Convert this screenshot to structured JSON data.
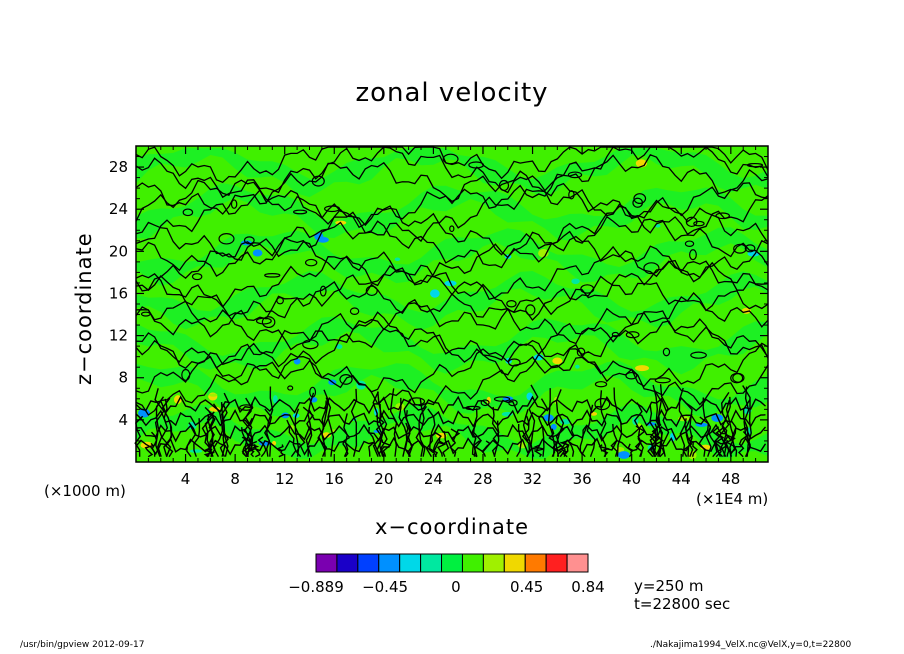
{
  "chart_data": {
    "type": "heatmap",
    "title": "zonal velocity",
    "xlabel": "x−coordinate",
    "ylabel": "z−coordinate",
    "x_unit_label": "(×1000 m)",
    "x_multiplier_label": "(×1E4 m)",
    "xlim": [
      0,
      51
    ],
    "ylim": [
      0,
      30
    ],
    "x_ticks": [
      4,
      8,
      12,
      16,
      20,
      24,
      28,
      32,
      36,
      40,
      44,
      48
    ],
    "y_ticks": [
      4,
      8,
      12,
      16,
      20,
      24,
      28
    ],
    "colorbar": {
      "colors": [
        "#7a00b0",
        "#1a00c8",
        "#0040ff",
        "#0090ff",
        "#00d8e8",
        "#00e8a0",
        "#00f040",
        "#40f000",
        "#a0f000",
        "#f0d800",
        "#ff7a00",
        "#ff2020",
        "#ff9090"
      ],
      "tick_labels": [
        "−0.889",
        "−0.45",
        "0",
        "0.45",
        "0.84"
      ],
      "tick_values": [
        -0.889,
        -0.45,
        0,
        0.45,
        0.84
      ]
    },
    "annotations": [
      "y=250 m",
      "t=22800 sec"
    ],
    "field_background_color": "#40f000"
  },
  "footer": {
    "left": "/usr/bin/gpview   2012-09-17",
    "right": "./Nakajima1994_VelX.nc@VelX,y=0,t=22800"
  }
}
